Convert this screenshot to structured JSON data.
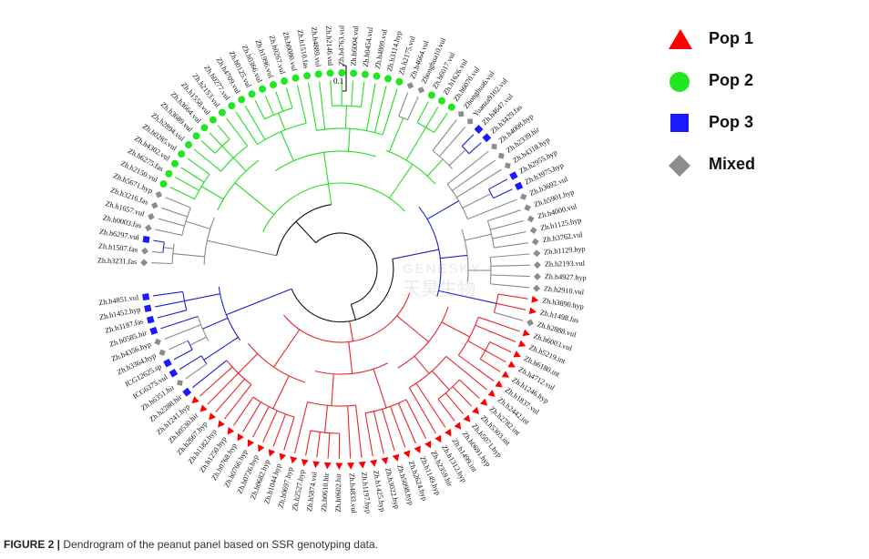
{
  "caption": {
    "label": "FIGURE 2 |",
    "text": " Dendrogram of the peanut panel based on SSR genotyping data."
  },
  "scale_bar": {
    "label": "0.1"
  },
  "watermark": {
    "line1": "GENESKY",
    "line2": "天昊生物"
  },
  "legend": [
    {
      "label": "Pop 1",
      "shape": "triangle",
      "color": "#ff0000"
    },
    {
      "label": "Pop 2",
      "shape": "circle",
      "color": "#22e622"
    },
    {
      "label": "Pop 3",
      "shape": "square",
      "color": "#1a1aff"
    },
    {
      "label": "Mixed",
      "shape": "diamond",
      "color": "#8c8c8c"
    }
  ],
  "colors": {
    "pop1": "#e8262a",
    "pop2": "#22dd22",
    "pop3": "#1a22cc",
    "mixed": "#8a8a8a",
    "root": "#111111"
  },
  "leaves": [
    {
      "label": "Zh.h3231.fas",
      "group": "mixed"
    },
    {
      "label": "Zh.h1507.fas",
      "group": "mixed"
    },
    {
      "label": "Zh.h6297.vul",
      "group": "pop3"
    },
    {
      "label": "Zh.h0003.fas",
      "group": "mixed"
    },
    {
      "label": "Zh.h1657.vul",
      "group": "mixed"
    },
    {
      "label": "Zh.h3216.fas",
      "group": "mixed"
    },
    {
      "label": "Zh.h5671.hyp",
      "group": "mixed"
    },
    {
      "label": "Zh.h2150.vul",
      "group": "pop2"
    },
    {
      "label": "Zh.h6275.fas",
      "group": "pop2"
    },
    {
      "label": "Zh.h4302.vul",
      "group": "pop2"
    },
    {
      "label": "Zh.h0285.vul",
      "group": "pop2"
    },
    {
      "label": "Zh.h2894.vul",
      "group": "pop2"
    },
    {
      "label": "Zh.h3689.vul",
      "group": "pop2"
    },
    {
      "label": "Zh.h3664.vul",
      "group": "pop2"
    },
    {
      "label": "Zh.h1558.vul",
      "group": "pop2"
    },
    {
      "label": "Zh.h2153.vul",
      "group": "pop2"
    },
    {
      "label": "Zh.h0277.vul",
      "group": "pop2"
    },
    {
      "label": "Zh.h4709.vul",
      "group": "pop2"
    },
    {
      "label": "Zh.h0125.vul",
      "group": "pop2"
    },
    {
      "label": "Zh.h0366.vul",
      "group": "pop2"
    },
    {
      "label": "Zh.h1996.vul",
      "group": "pop2"
    },
    {
      "label": "Zh.h0267.vul",
      "group": "pop2"
    },
    {
      "label": "Zh.h0080.vul",
      "group": "pop2"
    },
    {
      "label": "Zh.h1510.fas",
      "group": "pop2"
    },
    {
      "label": "Zh.h4889.vul",
      "group": "pop2"
    },
    {
      "label": "Zh.h2146.vul",
      "group": "pop2"
    },
    {
      "label": "Zh.h4763.vul",
      "group": "pop2"
    },
    {
      "label": "Zh.h6004.vul",
      "group": "pop2"
    },
    {
      "label": "Zh.h0454.vul",
      "group": "pop2"
    },
    {
      "label": "Zh.h4809.vul",
      "group": "pop2"
    },
    {
      "label": "Zh.h3114.hyp",
      "group": "pop2"
    },
    {
      "label": "Zh.h2175.vul",
      "group": "pop2"
    },
    {
      "label": "Zh.h4664.vul",
      "group": "mixed"
    },
    {
      "label": "Zhonghua10.vul",
      "group": "mixed"
    },
    {
      "label": "Zh.h6017.vul",
      "group": "pop2"
    },
    {
      "label": "Zh.h1626.vul",
      "group": "pop2"
    },
    {
      "label": "Zh.h6070.vul",
      "group": "pop2"
    },
    {
      "label": "Zhonghua6.vul",
      "group": "mixed"
    },
    {
      "label": "Yuanza9102.vul",
      "group": "mixed"
    },
    {
      "label": "Zh.h4647.vul",
      "group": "pop3"
    },
    {
      "label": "Zh.h3429.fas",
      "group": "pop3"
    },
    {
      "label": "Zh.h4008.hyp",
      "group": "mixed"
    },
    {
      "label": "Zh.h2339.hir",
      "group": "mixed"
    },
    {
      "label": "Zh.h4318.hyp",
      "group": "mixed"
    },
    {
      "label": "Zh.h2955.hyp",
      "group": "pop3"
    },
    {
      "label": "Zh.h3975.hyp",
      "group": "pop3"
    },
    {
      "label": "Zh.h3692.vul",
      "group": "mixed"
    },
    {
      "label": "Zh.h5901.hyp",
      "group": "mixed"
    },
    {
      "label": "Zh.h4000.vul",
      "group": "mixed"
    },
    {
      "label": "Zh.h1125.hyp",
      "group": "mixed"
    },
    {
      "label": "Zh.h3762.vul",
      "group": "mixed"
    },
    {
      "label": "Zh.h1129.hyp",
      "group": "mixed"
    },
    {
      "label": "Zh.h2193.vul",
      "group": "mixed"
    },
    {
      "label": "Zh.h4927.hyp",
      "group": "mixed"
    },
    {
      "label": "Zh.h2910.vul",
      "group": "mixed"
    },
    {
      "label": "Zh.h3890.hyp",
      "group": "pop1"
    },
    {
      "label": "Zh.h1498.fas",
      "group": "pop1"
    },
    {
      "label": "Zh.h2888.vul",
      "group": "mixed"
    },
    {
      "label": "Zh.h6003.vul",
      "group": "pop1"
    },
    {
      "label": "Zh.h5219.int",
      "group": "pop1"
    },
    {
      "label": "Zh.h6180.int",
      "group": "pop1"
    },
    {
      "label": "Zh.h4712.vul",
      "group": "pop1"
    },
    {
      "label": "Zh.h1246.hyp",
      "group": "pop1"
    },
    {
      "label": "Zh.h1837.vul",
      "group": "pop1"
    },
    {
      "label": "Zh.h2442.int",
      "group": "pop1"
    },
    {
      "label": "Zh.h2782.int",
      "group": "pop1"
    },
    {
      "label": "Zh.h5303.int",
      "group": "pop1"
    },
    {
      "label": "Zh.h5071.hyp",
      "group": "pop1"
    },
    {
      "label": "Zh.h0691.hyp",
      "group": "pop1"
    },
    {
      "label": "Zh.h1499.int",
      "group": "pop1"
    },
    {
      "label": "Zh.h1312.hyp",
      "group": "pop1"
    },
    {
      "label": "Zh.h2359.hir",
      "group": "pop1"
    },
    {
      "label": "Zh.h1149.hyp",
      "group": "pop1"
    },
    {
      "label": "Zh.h2624.hyp",
      "group": "pop1"
    },
    {
      "label": "Zh.h5098.hyp",
      "group": "pop1"
    },
    {
      "label": "Zh.h3022.hyp",
      "group": "pop1"
    },
    {
      "label": "Zh.h1425.hyp",
      "group": "pop1"
    },
    {
      "label": "Zh.h1197.hyp",
      "group": "pop1"
    },
    {
      "label": "Zh.h4833.vul",
      "group": "pop1"
    },
    {
      "label": "Zh.h0602.hir",
      "group": "pop1"
    },
    {
      "label": "Zh.h0610.hir",
      "group": "pop1"
    },
    {
      "label": "Zh.h5874.vul",
      "group": "pop1"
    },
    {
      "label": "Zh.h2527.hyp",
      "group": "pop1"
    },
    {
      "label": "Zh.h0697.hyp",
      "group": "pop1"
    },
    {
      "label": "Zh.h1044.hyp",
      "group": "pop1"
    },
    {
      "label": "Zh.h0682.hyp",
      "group": "pop1"
    },
    {
      "label": "Zh.h0726.hyp",
      "group": "pop1"
    },
    {
      "label": "Zh.h0766.hyp",
      "group": "pop1"
    },
    {
      "label": "Zh.h0768.hyp",
      "group": "pop1"
    },
    {
      "label": "Zh.h1250.hyp",
      "group": "pop1"
    },
    {
      "label": "Zh.h1182.hyp",
      "group": "pop1"
    },
    {
      "label": "Zh.h2667.hyp",
      "group": "pop1"
    },
    {
      "label": "Zh.h0530.hir",
      "group": "pop1"
    },
    {
      "label": "Zh.h1241.hyp",
      "group": "pop1"
    },
    {
      "label": "Zh.h2288.hir",
      "group": "pop3"
    },
    {
      "label": "Zh.h6351.hir",
      "group": "mixed"
    },
    {
      "label": "ICG6375.vul",
      "group": "pop3"
    },
    {
      "label": "ICG12625.sp",
      "group": "pop3"
    },
    {
      "label": "Zh.h3364.hyp",
      "group": "mixed"
    },
    {
      "label": "Zh.h4356.hyp",
      "group": "mixed"
    },
    {
      "label": "Zh.h0585.hir",
      "group": "pop3"
    },
    {
      "label": "Zh.h3187.fas",
      "group": "pop3"
    },
    {
      "label": "Zh.h1452.hyp",
      "group": "pop3"
    },
    {
      "label": "Zh.h4851.vul",
      "group": "pop3"
    }
  ]
}
